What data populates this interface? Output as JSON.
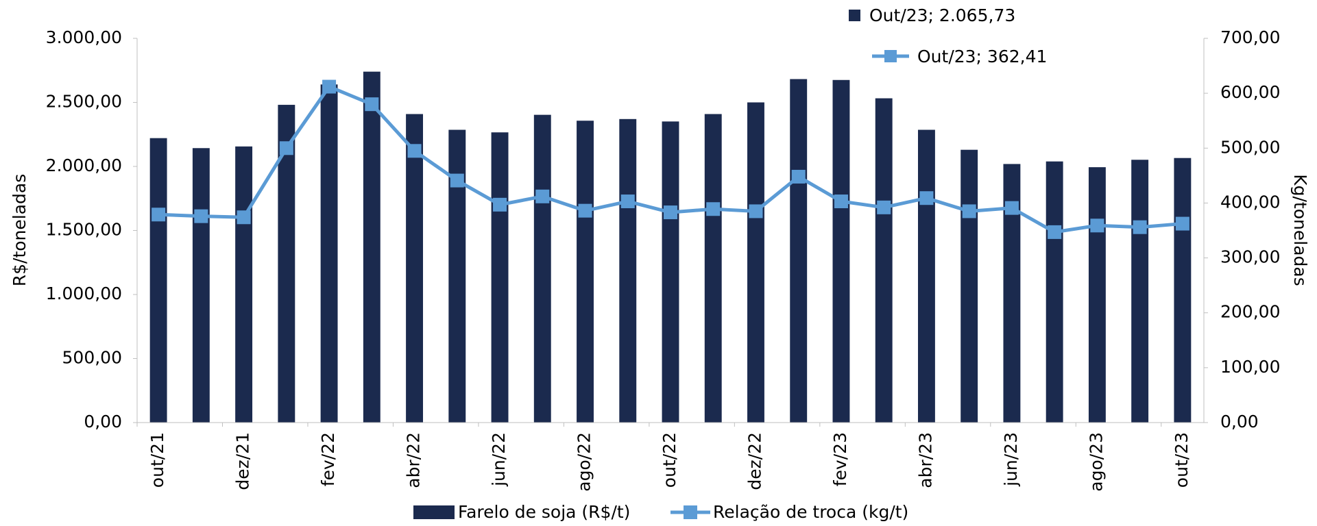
{
  "chart_data": {
    "type": "bar",
    "categories": [
      "out/21",
      null,
      "dez/21",
      null,
      "fev/22",
      null,
      "abr/22",
      null,
      "jun/22",
      null,
      "ago/22",
      null,
      "out/22",
      null,
      "dez/22",
      null,
      "fev/23",
      null,
      "abr/23",
      null,
      "jun/23",
      null,
      "ago/23",
      null,
      "out/23"
    ],
    "series": [
      {
        "name": "Farelo de soja (R$/t)",
        "type": "bar",
        "color": "#1b2a4e",
        "axis": "y",
        "values": [
          2221,
          2143,
          2156,
          2481,
          2640,
          2740,
          2409,
          2286,
          2266,
          2403,
          2357,
          2370,
          2351,
          2409,
          2500,
          2682,
          2675,
          2532,
          2286,
          2130,
          2019,
          2039,
          1994,
          2052,
          2065.73
        ]
      },
      {
        "name": "Relação de troca (kg/t)",
        "type": "line",
        "color": "#5b9bd5",
        "axis": "y2",
        "values": [
          379,
          376,
          374,
          500,
          612,
          580,
          495,
          441,
          397,
          412,
          386,
          403,
          383,
          389,
          385,
          448,
          403,
          392,
          409,
          385,
          391,
          347,
          359,
          356,
          362.41
        ]
      }
    ],
    "ylabel": "R$/toneladas",
    "y2label": "Kg/toneladas",
    "ylim": [
      0,
      3000
    ],
    "yticks": [
      {
        "value": 0,
        "label": "0,00"
      },
      {
        "value": 500,
        "label": "500,00"
      },
      {
        "value": 1000,
        "label": "1.000,00"
      },
      {
        "value": 1500,
        "label": "1.500,00"
      },
      {
        "value": 2000,
        "label": "2.000,00"
      },
      {
        "value": 2500,
        "label": "2.500,00"
      },
      {
        "value": 3000,
        "label": "3.000,00"
      }
    ],
    "y2lim": [
      0,
      700
    ],
    "y2ticks": [
      {
        "value": 0,
        "label": "0,00"
      },
      {
        "value": 100,
        "label": "100,00"
      },
      {
        "value": 200,
        "label": "200,00"
      },
      {
        "value": 300,
        "label": "300,00"
      },
      {
        "value": 400,
        "label": "400,00"
      },
      {
        "value": 500,
        "label": "500,00"
      },
      {
        "value": 600,
        "label": "600,00"
      },
      {
        "value": 700,
        "label": "700,00"
      }
    ],
    "annotations": [
      "Out/23; 2.065,73",
      "Out/23; 362,41"
    ],
    "legend": "bottom",
    "grid": false
  }
}
